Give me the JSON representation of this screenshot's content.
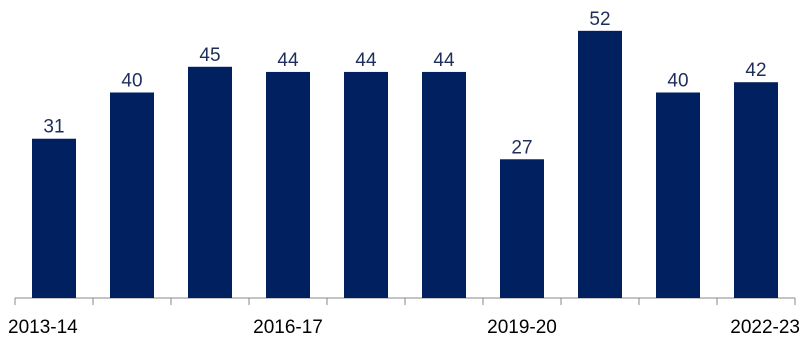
{
  "chart_data": {
    "type": "bar",
    "categories": [
      "2013-14",
      null,
      null,
      "2016-17",
      null,
      null,
      "2019-20",
      null,
      null,
      "2022-23"
    ],
    "values": [
      31,
      40,
      45,
      44,
      44,
      44,
      27,
      52,
      40,
      42
    ],
    "color": "#002060",
    "ylim": [
      0,
      58
    ]
  }
}
